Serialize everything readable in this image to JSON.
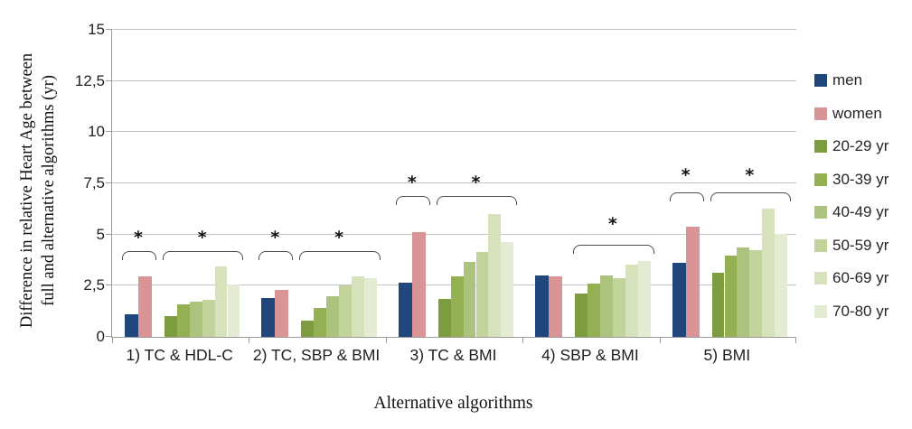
{
  "chart_data": {
    "type": "bar",
    "title": "",
    "xlabel": "Alternative algorithms",
    "ylabel": "Difference in relative Heart Age between full and alternative algorithms (yr)",
    "ylabel_lines": [
      "Difference in relative Heart Age between",
      "full and alternative algorithms (yr)"
    ],
    "ylim": [
      0,
      15
    ],
    "grid": true,
    "legend_position": "right",
    "yticks": [
      {
        "value": 0,
        "label": "0"
      },
      {
        "value": 2.5,
        "label": "2,5"
      },
      {
        "value": 5,
        "label": "5"
      },
      {
        "value": 7.5,
        "label": "7,5"
      },
      {
        "value": 10,
        "label": "10"
      },
      {
        "value": 12.5,
        "label": "12,5"
      },
      {
        "value": 15,
        "label": "15"
      }
    ],
    "categories": [
      "1) TC & HDL-C",
      "2) TC, SBP & BMI",
      "3) TC & BMI",
      "4) SBP & BMI",
      "5) BMI"
    ],
    "series": [
      {
        "name": "men",
        "group": "sex",
        "color": "#1F477B",
        "values": [
          1.1,
          1.9,
          2.65,
          3.0,
          3.6
        ]
      },
      {
        "name": "women",
        "group": "sex",
        "color": "#D99595",
        "values": [
          2.95,
          2.3,
          5.1,
          2.95,
          5.4
        ]
      },
      {
        "name": "20-29 yr",
        "group": "age",
        "color": "#7D9C40",
        "values": [
          1.0,
          0.8,
          1.85,
          2.1,
          3.15
        ]
      },
      {
        "name": "30-39 yr",
        "group": "age",
        "color": "#93B152",
        "values": [
          1.6,
          1.4,
          2.95,
          2.6,
          3.95
        ]
      },
      {
        "name": "40-49 yr",
        "group": "age",
        "color": "#ACC37E",
        "values": [
          1.7,
          2.0,
          3.65,
          3.0,
          4.35
        ]
      },
      {
        "name": "50-59 yr",
        "group": "age",
        "color": "#C2D49B",
        "values": [
          1.8,
          2.5,
          4.15,
          2.85,
          4.25
        ]
      },
      {
        "name": "60-69 yr",
        "group": "age",
        "color": "#D5E2BB",
        "values": [
          3.45,
          2.95,
          6.0,
          3.55,
          6.25
        ]
      },
      {
        "name": "70-80 yr",
        "group": "age",
        "color": "#E3ECD3",
        "values": [
          2.55,
          2.85,
          4.65,
          3.7,
          5.05
        ]
      }
    ],
    "significance_markers": [
      {
        "category_index": 0,
        "span": "sex",
        "marker": "*",
        "bracket_y": 4.2,
        "marker_y": 4.55
      },
      {
        "category_index": 0,
        "span": "age",
        "marker": "*",
        "bracket_y": 4.2,
        "marker_y": 4.55
      },
      {
        "category_index": 1,
        "span": "sex",
        "marker": "*",
        "bracket_y": 4.2,
        "marker_y": 4.55
      },
      {
        "category_index": 1,
        "span": "age",
        "marker": "*",
        "bracket_y": 4.2,
        "marker_y": 4.55
      },
      {
        "category_index": 2,
        "span": "sex",
        "marker": "*",
        "bracket_y": 6.9,
        "marker_y": 7.25
      },
      {
        "category_index": 2,
        "span": "age",
        "marker": "*",
        "bracket_y": 6.9,
        "marker_y": 7.25
      },
      {
        "category_index": 3,
        "span": "age",
        "marker": "*",
        "bracket_y": 4.5,
        "marker_y": 5.2
      },
      {
        "category_index": 4,
        "span": "sex",
        "marker": "*",
        "bracket_y": 7.05,
        "marker_y": 7.6
      },
      {
        "category_index": 4,
        "span": "age",
        "marker": "*",
        "bracket_y": 7.05,
        "marker_y": 7.6
      }
    ],
    "colors": {
      "gridline": "#C2C2C2",
      "axis": "#9B9B9B",
      "bracket": "#4C4C4C",
      "text": "#1A1A1A"
    }
  }
}
